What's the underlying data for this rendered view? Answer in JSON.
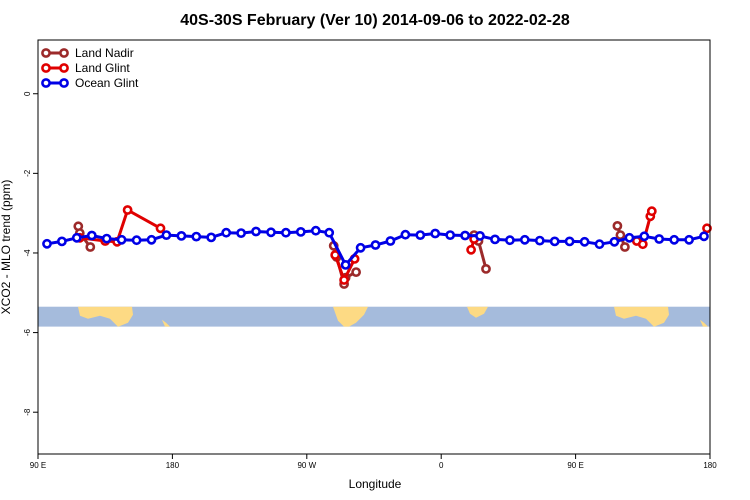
{
  "chart_data": {
    "type": "line",
    "title": "40S-30S February (Ver 10)   2014-09-06 to 2022-02-28",
    "xlabel": "Longitude",
    "ylabel": "XCO2 - MLO trend (ppm)",
    "x_unit": "degrees longitude, continuous from 90E eastward to 180E of the next cycle",
    "xlim": [
      90,
      540
    ],
    "ylim": [
      -9.05,
      1.35
    ],
    "x_ticks": [
      {
        "value": 90,
        "label": "90 E"
      },
      {
        "value": 180,
        "label": "180"
      },
      {
        "value": 270,
        "label": "90 W"
      },
      {
        "value": 360,
        "label": "0"
      },
      {
        "value": 450,
        "label": "90 E"
      },
      {
        "value": 540,
        "label": "180"
      }
    ],
    "y_ticks": [
      {
        "value": 0,
        "label": "0"
      },
      {
        "value": -2,
        "label": "-2"
      },
      {
        "value": -4,
        "label": "-4"
      },
      {
        "value": -6,
        "label": "-6"
      },
      {
        "value": -8,
        "label": "-8"
      }
    ],
    "legend_position": "top-left",
    "grid": false,
    "map_strip": {
      "y_top": -5.35,
      "y_bottom": -5.85,
      "ocean_color": "#a5bbdc",
      "land_color": "#fdda84"
    },
    "series": [
      {
        "name": "Land Nadir",
        "color": "#9c2a2a",
        "segments": [
          [
            [
              117,
              -3.33
            ],
            [
              118,
              -3.5
            ],
            [
              125,
              -3.85
            ]
          ],
          [
            [
              288,
              -3.82
            ],
            [
              290,
              -4.1
            ],
            [
              295,
              -4.78
            ],
            [
              296,
              -4.62
            ],
            [
              303,
              -4.48
            ]
          ],
          [
            [
              382,
              -3.55
            ],
            [
              385,
              -3.7
            ],
            [
              390,
              -4.4
            ]
          ],
          [
            [
              478,
              -3.32
            ],
            [
              480,
              -3.55
            ],
            [
              483,
              -3.85
            ]
          ]
        ]
      },
      {
        "name": "Land Glint",
        "color": "#e00000",
        "segments": [
          [
            [
              118,
              -3.62
            ],
            [
              135,
              -3.7
            ],
            [
              143,
              -3.72
            ],
            [
              150,
              -2.92
            ],
            [
              172,
              -3.38
            ]
          ],
          [
            [
              289,
              -4.05
            ],
            [
              295,
              -4.68
            ],
            [
              302,
              -4.15
            ]
          ],
          [
            [
              380,
              -3.92
            ],
            [
              382,
              -3.65
            ]
          ],
          [
            [
              491,
              -3.7
            ],
            [
              495,
              -3.78
            ],
            [
              500,
              -3.08
            ],
            [
              501,
              -2.95
            ]
          ],
          [
            [
              538,
              -3.38
            ]
          ]
        ]
      },
      {
        "name": "Ocean Glint",
        "color": "#0000e6",
        "points": [
          [
            96,
            -3.77
          ],
          [
            106,
            -3.71
          ],
          [
            116,
            -3.62
          ],
          [
            126,
            -3.56
          ],
          [
            136,
            -3.64
          ],
          [
            146,
            -3.67
          ],
          [
            156,
            -3.68
          ],
          [
            166,
            -3.67
          ],
          [
            176,
            -3.55
          ],
          [
            186,
            -3.57
          ],
          [
            196,
            -3.59
          ],
          [
            206,
            -3.61
          ],
          [
            216,
            -3.49
          ],
          [
            226,
            -3.5
          ],
          [
            236,
            -3.46
          ],
          [
            246,
            -3.48
          ],
          [
            256,
            -3.49
          ],
          [
            266,
            -3.47
          ],
          [
            276,
            -3.44
          ],
          [
            285,
            -3.49
          ],
          [
            296,
            -4.3
          ],
          [
            306,
            -3.87
          ],
          [
            316,
            -3.8
          ],
          [
            326,
            -3.7
          ],
          [
            336,
            -3.54
          ],
          [
            346,
            -3.55
          ],
          [
            356,
            -3.51
          ],
          [
            366,
            -3.55
          ],
          [
            376,
            -3.56
          ],
          [
            386,
            -3.57
          ],
          [
            396,
            -3.66
          ],
          [
            406,
            -3.68
          ],
          [
            416,
            -3.67
          ],
          [
            426,
            -3.69
          ],
          [
            436,
            -3.71
          ],
          [
            446,
            -3.71
          ],
          [
            456,
            -3.72
          ],
          [
            466,
            -3.78
          ],
          [
            476,
            -3.72
          ],
          [
            486,
            -3.62
          ],
          [
            496,
            -3.58
          ],
          [
            506,
            -3.65
          ],
          [
            516,
            -3.67
          ],
          [
            526,
            -3.67
          ],
          [
            536,
            -3.58
          ]
        ]
      }
    ]
  }
}
